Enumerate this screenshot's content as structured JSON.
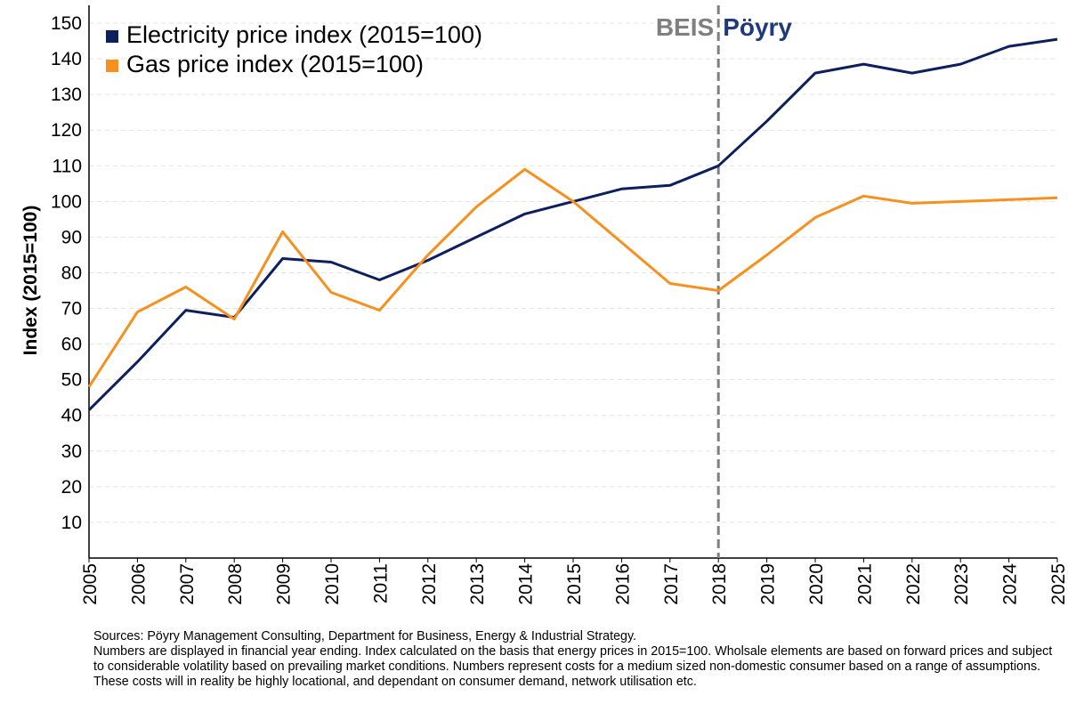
{
  "chart_data": {
    "type": "line",
    "title": "",
    "ylabel": "Index (2015=100)",
    "xlabel": "",
    "ylim": [
      0,
      155
    ],
    "yticks": [
      10,
      20,
      30,
      40,
      50,
      60,
      70,
      80,
      90,
      100,
      110,
      120,
      130,
      140,
      150
    ],
    "grid": true,
    "legend_position": "top-left",
    "categories": [
      "2005",
      "2006",
      "2007",
      "2008",
      "2009",
      "2010",
      "2011",
      "2012",
      "2013",
      "2014",
      "2015",
      "2016",
      "2017",
      "2018",
      "2019",
      "2020",
      "2021",
      "2022",
      "2023",
      "2024",
      "2025"
    ],
    "series": [
      {
        "name": "Electricity price index (2015=100)",
        "color": "#0d1f5c",
        "values": [
          41.5,
          55,
          69.5,
          67.5,
          84,
          83,
          78,
          83.5,
          90,
          96.5,
          100,
          103.5,
          104.5,
          110,
          122.5,
          136,
          138.5,
          136,
          138.5,
          143.5,
          145.5
        ]
      },
      {
        "name": "Gas price index (2015=100)",
        "color": "#f7901e",
        "values": [
          48,
          69,
          76,
          67,
          91.5,
          74.5,
          69.5,
          85,
          98.5,
          109,
          100,
          88.5,
          77,
          75,
          85,
          95.5,
          101.5,
          99.5,
          100,
          100.5,
          101
        ]
      }
    ],
    "divider": {
      "at": "2018",
      "left_label": "BEIS",
      "right_label": "Pöyry",
      "left_color": "#7f7f7f",
      "right_color": "#1f3a7a",
      "line_color": "#808080"
    }
  },
  "sources": {
    "line1": "Sources: Pöyry Management Consulting, Department for Business, Energy & Industrial Strategy.",
    "line2": "Numbers are displayed in financial year ending. Index calculated on the basis that energy prices in 2015=100. Wholsale elements are based on forward prices and subject to considerable volatility based on prevailing market conditions. Numbers represent costs for a medium sized non-domestic consumer based on a range of assumptions. These costs will in reality be highly locational, and dependant on consumer demand, network utilisation etc."
  }
}
